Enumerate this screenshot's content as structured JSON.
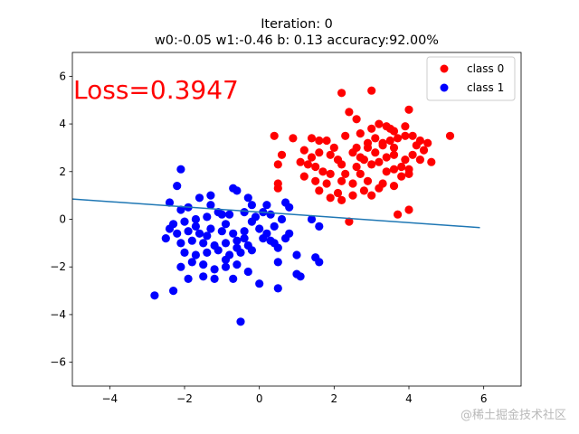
{
  "chart_data": {
    "type": "scatter",
    "title_line1": "Iteration: 0",
    "title_line2": "w0:-0.05 w1:-0.46 b: 0.13 accuracy:92.00%",
    "annotation": "Loss=0.3947",
    "xlabel": "",
    "ylabel": "",
    "xlim": [
      -5,
      7
    ],
    "ylim": [
      -7,
      7
    ],
    "xticks": [
      -4,
      -2,
      0,
      2,
      4,
      6
    ],
    "yticks": [
      -6,
      -4,
      -2,
      0,
      2,
      4,
      6
    ],
    "grid": false,
    "legend_position": "top-right",
    "series": [
      {
        "name": "class 0",
        "color": "#ff0000",
        "points": [
          [
            2.2,
            5.3
          ],
          [
            3.0,
            5.4
          ],
          [
            2.4,
            4.5
          ],
          [
            4.0,
            4.6
          ],
          [
            2.6,
            4.2
          ],
          [
            3.2,
            4.0
          ],
          [
            3.4,
            3.9
          ],
          [
            3.5,
            3.8
          ],
          [
            3.9,
            3.9
          ],
          [
            3.0,
            3.8
          ],
          [
            3.6,
            3.7
          ],
          [
            2.7,
            3.6
          ],
          [
            2.3,
            3.5
          ],
          [
            4.1,
            3.5
          ],
          [
            3.7,
            3.4
          ],
          [
            3.9,
            3.5
          ],
          [
            4.3,
            3.3
          ],
          [
            3.1,
            3.4
          ],
          [
            5.1,
            3.5
          ],
          [
            0.4,
            3.5
          ],
          [
            0.9,
            3.4
          ],
          [
            1.4,
            3.4
          ],
          [
            1.6,
            3.3
          ],
          [
            1.8,
            3.3
          ],
          [
            2.9,
            3.2
          ],
          [
            3.3,
            3.1
          ],
          [
            2.6,
            3.0
          ],
          [
            2.9,
            3.0
          ],
          [
            3.3,
            3.2
          ],
          [
            3.6,
            3.0
          ],
          [
            4.2,
            3.1
          ],
          [
            4.5,
            3.2
          ],
          [
            1.2,
            2.9
          ],
          [
            1.6,
            2.8
          ],
          [
            1.9,
            2.7
          ],
          [
            2.5,
            2.8
          ],
          [
            3.1,
            2.8
          ],
          [
            3.6,
            2.7
          ],
          [
            4.1,
            2.7
          ],
          [
            4.4,
            2.9
          ],
          [
            0.6,
            2.7
          ],
          [
            1.4,
            2.6
          ],
          [
            2.1,
            2.5
          ],
          [
            2.8,
            2.5
          ],
          [
            3.4,
            2.6
          ],
          [
            3.9,
            2.5
          ],
          [
            4.3,
            2.5
          ],
          [
            4.6,
            2.4
          ],
          [
            2.2,
            2.3
          ],
          [
            2.6,
            2.2
          ],
          [
            3.0,
            2.3
          ],
          [
            3.8,
            2.2
          ],
          [
            4.0,
            2.1
          ],
          [
            1.1,
            2.4
          ],
          [
            1.3,
            2.3
          ],
          [
            1.7,
            2.0
          ],
          [
            1.9,
            1.9
          ],
          [
            2.3,
            1.9
          ],
          [
            2.7,
            1.9
          ],
          [
            3.4,
            2.0
          ],
          [
            3.6,
            2.1
          ],
          [
            4.0,
            1.9
          ],
          [
            1.2,
            1.8
          ],
          [
            1.5,
            1.6
          ],
          [
            1.8,
            1.5
          ],
          [
            2.2,
            1.6
          ],
          [
            2.5,
            1.5
          ],
          [
            2.9,
            1.6
          ],
          [
            3.3,
            1.5
          ],
          [
            3.6,
            1.4
          ],
          [
            0.5,
            2.3
          ],
          [
            0.5,
            1.3
          ],
          [
            1.6,
            1.2
          ],
          [
            2.1,
            1.1
          ],
          [
            2.5,
            1.0
          ],
          [
            2.8,
            1.2
          ],
          [
            3.2,
            1.3
          ],
          [
            3.0,
            1.0
          ],
          [
            1.9,
            0.9
          ],
          [
            2.2,
            0.8
          ],
          [
            0.5,
            1.5
          ],
          [
            3.8,
            1.8
          ],
          [
            4.0,
            0.4
          ],
          [
            3.7,
            0.2
          ],
          [
            2.4,
            -0.1
          ],
          [
            1.5,
            2.2
          ],
          [
            2.7,
            2.6
          ],
          [
            3.5,
            3.3
          ],
          [
            2.0,
            3.0
          ],
          [
            3.2,
            2.4
          ]
        ]
      },
      {
        "name": "class 1",
        "color": "#0000ff",
        "points": [
          [
            -2.1,
            2.1
          ],
          [
            -2.2,
            1.4
          ],
          [
            -2.4,
            0.7
          ],
          [
            -2.1,
            0.4
          ],
          [
            -1.9,
            0.5
          ],
          [
            -1.6,
            0.9
          ],
          [
            -1.3,
            1.0
          ],
          [
            -0.7,
            1.3
          ],
          [
            -0.6,
            1.2
          ],
          [
            -0.3,
            0.9
          ],
          [
            -0.2,
            0.6
          ],
          [
            0.2,
            0.6
          ],
          [
            0.7,
            0.7
          ],
          [
            0.8,
            0.5
          ],
          [
            -2.3,
            -0.2
          ],
          [
            -2.0,
            -0.1
          ],
          [
            -1.7,
            0.0
          ],
          [
            -1.4,
            0.1
          ],
          [
            -1.1,
            0.3
          ],
          [
            -0.8,
            0.2
          ],
          [
            -0.4,
            0.3
          ],
          [
            -0.1,
            0.1
          ],
          [
            0.3,
            0.2
          ],
          [
            0.6,
            0.0
          ],
          [
            1.4,
            0.0
          ],
          [
            1.6,
            -0.3
          ],
          [
            -2.2,
            -0.6
          ],
          [
            -1.9,
            -0.5
          ],
          [
            -1.6,
            -0.6
          ],
          [
            -1.3,
            -0.4
          ],
          [
            -1.0,
            -0.5
          ],
          [
            -0.7,
            -0.6
          ],
          [
            -0.4,
            -0.5
          ],
          [
            0.0,
            -0.4
          ],
          [
            0.4,
            -0.3
          ],
          [
            0.7,
            -0.8
          ],
          [
            -2.1,
            -1.0
          ],
          [
            -1.8,
            -0.9
          ],
          [
            -1.5,
            -1.0
          ],
          [
            -1.2,
            -1.1
          ],
          [
            -0.9,
            -1.0
          ],
          [
            -0.6,
            -0.9
          ],
          [
            -0.3,
            -1.1
          ],
          [
            0.1,
            -0.8
          ],
          [
            0.3,
            -0.9
          ],
          [
            -2.0,
            -1.4
          ],
          [
            -1.7,
            -1.5
          ],
          [
            -1.4,
            -1.4
          ],
          [
            -1.1,
            -1.3
          ],
          [
            -0.8,
            -1.5
          ],
          [
            -0.5,
            -1.4
          ],
          [
            -0.2,
            -1.3
          ],
          [
            0.5,
            -1.2
          ],
          [
            1.0,
            -1.5
          ],
          [
            1.5,
            -1.6
          ],
          [
            1.6,
            -1.8
          ],
          [
            -2.1,
            -2.0
          ],
          [
            -1.8,
            -1.8
          ],
          [
            -1.5,
            -1.9
          ],
          [
            -1.2,
            -2.1
          ],
          [
            -0.9,
            -2.0
          ],
          [
            -0.6,
            -1.9
          ],
          [
            -0.3,
            -2.2
          ],
          [
            0.5,
            -1.8
          ],
          [
            1.0,
            -2.3
          ],
          [
            1.1,
            -2.4
          ],
          [
            -1.9,
            -2.5
          ],
          [
            -1.5,
            -2.4
          ],
          [
            -1.2,
            -2.5
          ],
          [
            -0.7,
            -2.5
          ],
          [
            0.0,
            -2.7
          ],
          [
            0.5,
            -2.9
          ],
          [
            -2.8,
            -3.2
          ],
          [
            -2.3,
            -3.0
          ],
          [
            -0.5,
            -4.3
          ],
          [
            -2.5,
            -0.8
          ],
          [
            -0.9,
            -0.2
          ],
          [
            0.2,
            -0.6
          ],
          [
            -1.3,
            0.6
          ],
          [
            -0.4,
            -0.8
          ],
          [
            0.1,
            0.3
          ],
          [
            -2.4,
            -0.4
          ],
          [
            -1.0,
            0.2
          ],
          [
            -0.6,
            -1.2
          ],
          [
            0.4,
            -1.0
          ],
          [
            -1.7,
            -0.3
          ],
          [
            -0.2,
            -0.1
          ],
          [
            0.8,
            -0.6
          ],
          [
            -1.4,
            -0.7
          ],
          [
            -0.9,
            -1.7
          ]
        ]
      }
    ],
    "lines": [
      {
        "x": [
          -5,
          5.9
        ],
        "y": [
          0.85,
          -0.35
        ],
        "color": "#1f77b4"
      }
    ]
  },
  "watermark": "@稀土掘金技术社区"
}
